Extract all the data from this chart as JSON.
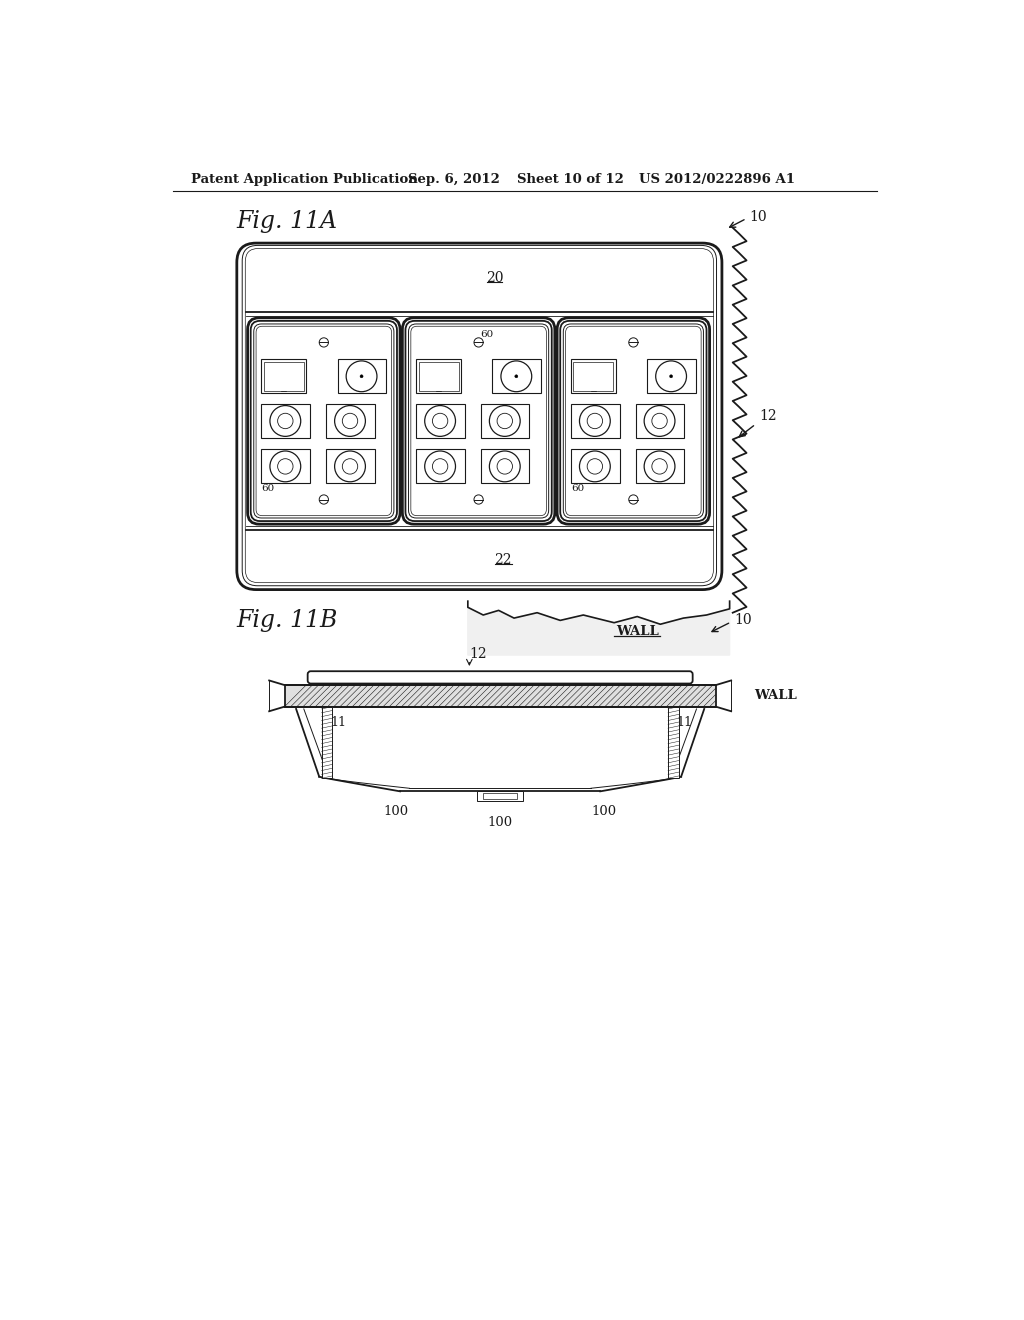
{
  "title_header": "Patent Application Publication",
  "date": "Sep. 6, 2012",
  "sheet": "Sheet 10 of 12",
  "patent_num": "US 2012/0222896 A1",
  "fig11a_label": "Fig. 11A",
  "fig11b_label": "Fig. 11B",
  "bg_color": "#ffffff",
  "line_color": "#1a1a1a",
  "header_font_size": 9.5,
  "fig_label_font_size": 17,
  "ref_font_size": 10
}
